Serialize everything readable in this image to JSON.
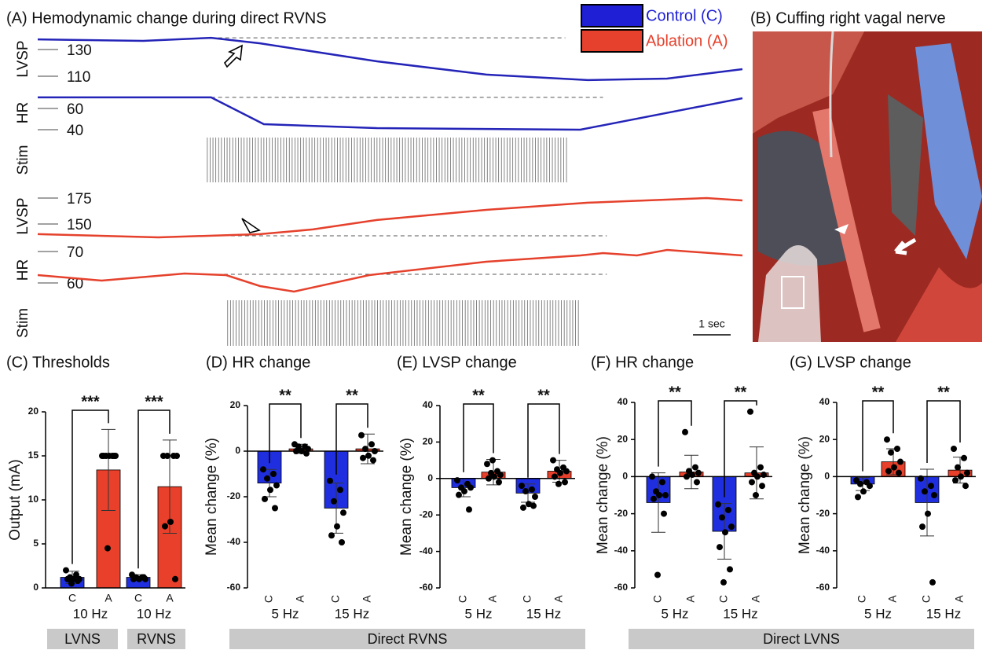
{
  "legend": [
    {
      "name": "Control (C)",
      "color": "#1f1fd6"
    },
    {
      "name": "Ablation (A)",
      "color": "#e5412c"
    }
  ],
  "panel_b": {
    "title": "(B) Cuffing right vagal nerve"
  },
  "footers": [
    "LVNS",
    "RVNS",
    "Direct RVNS",
    "Direct LVNS"
  ],
  "chart_data": [
    {
      "type": "line",
      "title": "(A) Hemodynamic change during direct RVNS",
      "y_label": "LVSP",
      "color": "#2424b8",
      "x": [
        0,
        2.8,
        4.6,
        5.9,
        9,
        11.9,
        14.6,
        16.7,
        18.7
      ],
      "values": [
        137.6,
        136.5,
        138.8,
        134.7,
        121.2,
        111.2,
        107.1,
        108.2,
        115.3
      ],
      "xlim": [
        0,
        18.7
      ],
      "ylim": [
        103.5,
        142.4
      ],
      "yticks": [
        130,
        110
      ],
      "baseline": 138.8,
      "baseline_x": [
        4.6,
        14
      ]
    },
    {
      "type": "line",
      "y_label": "HR",
      "color": "#2424b8",
      "x": [
        0,
        4.6,
        6,
        9,
        14.4,
        18.7
      ],
      "values": [
        70.4,
        70.4,
        45.2,
        41.5,
        40,
        69.6
      ],
      "xlim": [
        0,
        18.7
      ],
      "ylim": [
        34.8,
        77
      ],
      "yticks": [
        60,
        40
      ],
      "baseline": 70.4,
      "baseline_x": [
        4.6,
        15
      ]
    },
    {
      "type": "stim",
      "y_label": "Stim",
      "x": [
        4.5,
        14.1
      ],
      "xlim": [
        0,
        18.7
      ]
    },
    {
      "type": "line",
      "y_label": "LVSP",
      "color": "#e5412c",
      "x": [
        0,
        3.2,
        5.9,
        7.3,
        9,
        11.9,
        14.6,
        17.75,
        18.7
      ],
      "values": [
        140.2,
        137.1,
        140.2,
        144.7,
        153.8,
        163.6,
        170.5,
        175,
        172.7
      ],
      "xlim": [
        0,
        18.7
      ],
      "ylim": [
        134.8,
        180.3
      ],
      "yticks": [
        175,
        150
      ],
      "baseline": 138.6,
      "baseline_x": [
        4,
        15.1
      ]
    },
    {
      "type": "line",
      "y_label": "HR",
      "color": "#e5412c",
      "x": [
        0,
        1.7,
        3.9,
        5,
        5.9,
        6.8,
        8.8,
        11.9,
        14.4,
        15,
        15.9,
        16.7,
        18.7
      ],
      "values": [
        62.5,
        60.75,
        63,
        62.5,
        59,
        57.25,
        62.5,
        66.75,
        68.75,
        69.5,
        68.75,
        70.5,
        68.75
      ],
      "xlim": [
        0,
        18.7
      ],
      "ylim": [
        56.25,
        72
      ],
      "yticks": [
        70,
        60
      ],
      "baseline": 62.75,
      "baseline_x": [
        4,
        15.1
      ]
    },
    {
      "type": "stim",
      "y_label": "Stim",
      "x": [
        5.04,
        14.4
      ],
      "xlim": [
        0,
        18.7
      ],
      "scale_bar": {
        "value": 1,
        "label": "1 sec"
      }
    },
    {
      "type": "bar",
      "title": "(C) Thresholds",
      "y_label": "Output (mA)",
      "categories": [
        "C",
        "A",
        "C",
        "A"
      ],
      "group_labels": [
        "10 Hz",
        "10 Hz"
      ],
      "significance": [
        "***",
        "***"
      ],
      "colors": [
        "#1f2fe0",
        "#e8402a",
        "#1f2fe0",
        "#e8402a"
      ],
      "values": [
        1.2,
        13.4,
        1.2,
        11.5
      ],
      "errors": [
        0.7,
        4.6,
        0.3,
        5.3
      ],
      "points": [
        [
          2,
          1.5,
          1.2,
          1,
          1,
          1,
          0.8,
          0.5
        ],
        [
          15,
          15,
          15,
          15,
          15,
          15,
          15,
          4.5
        ],
        [
          1.5,
          1.2,
          1.2,
          1,
          1,
          1,
          1.2
        ],
        [
          15,
          15,
          15,
          15,
          7.5,
          7,
          1
        ]
      ],
      "ylim": [
        0,
        20
      ],
      "yticks": [
        0,
        5,
        10,
        15,
        20
      ]
    },
    {
      "type": "bar",
      "title": "(D) HR change",
      "y_label": "Mean change (%)",
      "categories": [
        "C",
        "A",
        "C",
        "A"
      ],
      "group_labels": [
        "5 Hz",
        "15 Hz"
      ],
      "significance": [
        "**",
        "**"
      ],
      "colors": [
        "#1f2fe0",
        "#e8402a",
        "#1f2fe0",
        "#e8402a"
      ],
      "values": [
        -14,
        1,
        -25,
        1
      ],
      "errors": [
        6,
        2,
        11,
        6.5
      ],
      "points": [
        [
          -8,
          -10,
          -12,
          -15,
          -17,
          -21,
          -25
        ],
        [
          3,
          2,
          2,
          1,
          0,
          0,
          -1
        ],
        [
          -13,
          -17,
          -22,
          -27,
          -33,
          -37,
          -40
        ],
        [
          7,
          3,
          1,
          0,
          -2,
          -3,
          -4
        ]
      ],
      "ylim": [
        -60,
        20
      ],
      "yticks": [
        -60,
        -40,
        -20,
        0,
        20
      ]
    },
    {
      "type": "bar",
      "title": "(E) LVSP change",
      "y_label": "Mean  change (%)",
      "categories": [
        "C",
        "A",
        "C",
        "A"
      ],
      "group_labels": [
        "5 Hz",
        "15 Hz"
      ],
      "significance": [
        "**",
        "**"
      ],
      "colors": [
        "#1f2fe0",
        "#e8402a",
        "#1f2fe0",
        "#e8402a"
      ],
      "values": [
        -5,
        3.5,
        -8,
        4
      ],
      "errors": [
        5,
        7,
        5,
        6
      ],
      "points": [
        [
          -1,
          -3,
          -5,
          -5,
          -7,
          -9,
          -17
        ],
        [
          8,
          4,
          3,
          2,
          1,
          0,
          -2,
          10
        ],
        [
          -4,
          -6,
          -7,
          -10,
          -14,
          -16,
          -15
        ],
        [
          10,
          6,
          5,
          4,
          3,
          1,
          -2,
          -3
        ]
      ],
      "ylim": [
        -60,
        40
      ],
      "yticks": [
        -60,
        -40,
        -20,
        0,
        20,
        40
      ]
    },
    {
      "type": "bar",
      "title": "(F) HR change",
      "y_label": "Mean change (%)",
      "categories": [
        "C",
        "A",
        "C",
        "A"
      ],
      "group_labels": [
        "5 Hz",
        "15 Hz"
      ],
      "significance": [
        "**",
        "**"
      ],
      "colors": [
        "#1f2fe0",
        "#e8402a",
        "#1f2fe0",
        "#e8402a"
      ],
      "values": [
        -14,
        2.5,
        -29.5,
        2
      ],
      "errors": [
        16,
        9,
        15,
        14
      ],
      "points": [
        [
          0,
          -3,
          -8,
          -10,
          -10,
          -12,
          -20,
          -53
        ],
        [
          24,
          5,
          3,
          2,
          1,
          0,
          -3
        ],
        [
          -15,
          -18,
          -22,
          -27,
          -30,
          -38,
          -50,
          -57
        ],
        [
          35,
          5,
          2,
          1,
          0,
          -3,
          -5,
          -10
        ]
      ],
      "ylim": [
        -60,
        40
      ],
      "yticks": [
        -60,
        -40,
        -20,
        0,
        20,
        40
      ]
    },
    {
      "type": "bar",
      "title": "(G) LVSP change",
      "y_label": "Mean change (%)",
      "categories": [
        "C",
        "A",
        "C",
        "A"
      ],
      "group_labels": [
        "5 Hz",
        "15 Hz"
      ],
      "significance": [
        "**",
        "**"
      ],
      "colors": [
        "#1f2fe0",
        "#e8402a",
        "#1f2fe0",
        "#e8402a"
      ],
      "values": [
        -4,
        8,
        -14,
        3.5
      ],
      "errors": [
        3.5,
        7,
        18,
        7
      ],
      "points": [
        [
          -2,
          -3,
          -4,
          -5,
          -8,
          -11
        ],
        [
          20,
          15,
          13,
          8,
          5,
          3,
          2
        ],
        [
          -1,
          -5,
          -8,
          -10,
          -20,
          -27,
          -57
        ],
        [
          15,
          10,
          5,
          2,
          0,
          -2,
          -5
        ]
      ],
      "ylim": [
        -60,
        40
      ],
      "yticks": [
        -60,
        -40,
        -20,
        0,
        20,
        40
      ]
    }
  ]
}
